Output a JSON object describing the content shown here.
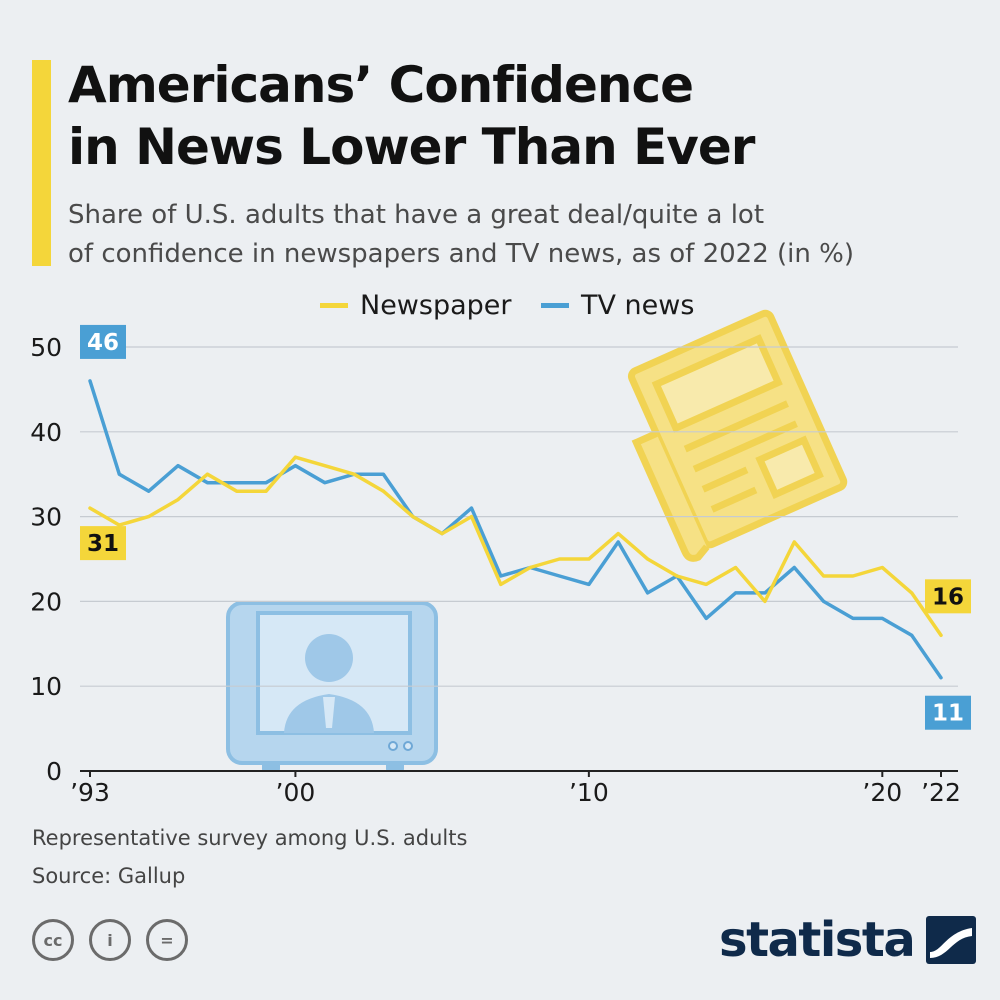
{
  "header": {
    "title_line1": "Americans’ Confidence",
    "title_line2": "in News Lower Than Ever",
    "subtitle_line1": "Share of U.S. adults that have a great deal/quite a lot",
    "subtitle_line2": "of confidence in newspapers and TV news, as of 2022 (in %)"
  },
  "colors": {
    "newspaper": "#f4d63a",
    "tv_news": "#4a9fd4",
    "accent": "#f4d63a",
    "brand": "#0f2a4a"
  },
  "chart_data": {
    "type": "line",
    "title": "",
    "xlabel": "",
    "ylabel": "",
    "x": [
      1993,
      1994,
      1995,
      1996,
      1997,
      1998,
      1999,
      2000,
      2001,
      2002,
      2003,
      2004,
      2005,
      2006,
      2007,
      2008,
      2009,
      2010,
      2011,
      2012,
      2013,
      2014,
      2015,
      2016,
      2017,
      2018,
      2019,
      2020,
      2021,
      2022
    ],
    "x_tick_labels": [
      {
        "x": 1993,
        "label": "’93"
      },
      {
        "x": 2000,
        "label": "’00"
      },
      {
        "x": 2010,
        "label": "’10"
      },
      {
        "x": 2020,
        "label": "’20"
      },
      {
        "x": 2022,
        "label": "’22"
      }
    ],
    "y_ticks": [
      0,
      10,
      20,
      30,
      40,
      50
    ],
    "ylim": [
      0,
      50
    ],
    "grid": true,
    "legend_position": "top-center",
    "series": [
      {
        "name": "Newspaper",
        "color_key": "newspaper",
        "values": [
          31,
          29,
          30,
          32,
          35,
          33,
          33,
          37,
          36,
          35,
          33,
          30,
          28,
          30,
          22,
          24,
          25,
          25,
          28,
          25,
          23,
          22,
          24,
          20,
          27,
          23,
          23,
          24,
          21,
          16
        ],
        "end_labels": [
          {
            "x": 1993,
            "label": "31",
            "pos": "below"
          },
          {
            "x": 2022,
            "label": "16",
            "pos": "above"
          }
        ]
      },
      {
        "name": "TV news",
        "color_key": "tv_news",
        "values": [
          46,
          35,
          33,
          36,
          34,
          34,
          34,
          36,
          34,
          35,
          35,
          30,
          28,
          31,
          23,
          24,
          23,
          22,
          27,
          21,
          23,
          18,
          21,
          21,
          24,
          20,
          18,
          18,
          16,
          11
        ],
        "end_labels": [
          {
            "x": 1993,
            "label": "46",
            "pos": "above"
          },
          {
            "x": 2022,
            "label": "11",
            "pos": "below"
          }
        ]
      }
    ]
  },
  "illustrations": {
    "newspaper_icon": "newspaper-icon",
    "tv_icon": "tv-newscaster-icon"
  },
  "footer": {
    "note": "Representative survey among U.S. adults",
    "source": "Source: Gallup",
    "license_icons": [
      "cc-icon",
      "attribution-icon",
      "no-derivatives-icon"
    ],
    "license_glyphs": [
      "cc",
      "i",
      "="
    ],
    "brand": "statista"
  }
}
